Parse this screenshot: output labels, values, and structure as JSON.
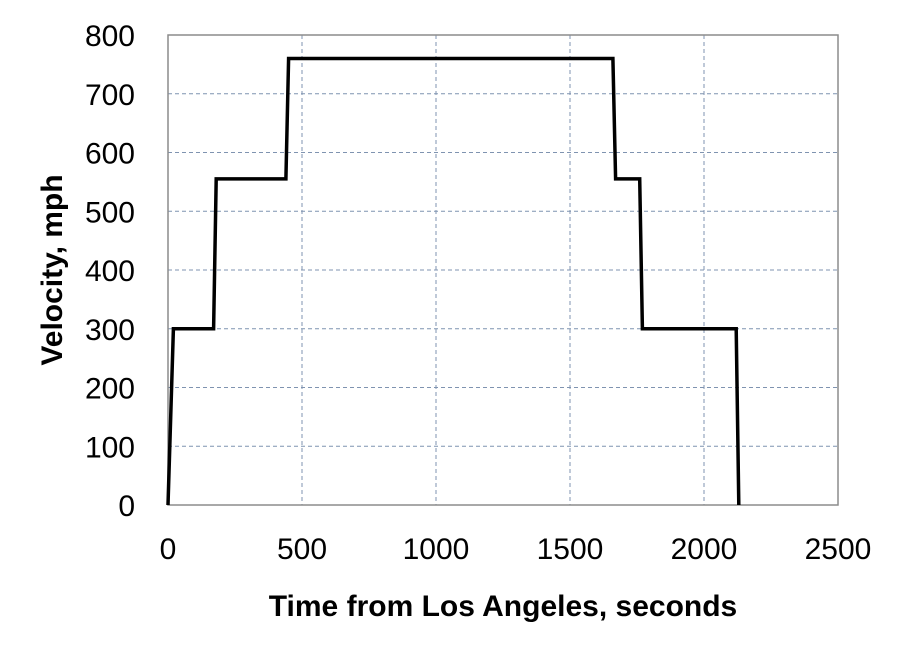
{
  "chart_data": {
    "type": "line",
    "title": "",
    "xlabel": "Time from Los Angeles, seconds",
    "ylabel": "Velocity, mph",
    "xlim": [
      0,
      2500
    ],
    "ylim": [
      0,
      800
    ],
    "x_ticks": [
      0,
      500,
      1000,
      1500,
      2000,
      2500
    ],
    "y_ticks": [
      0,
      100,
      200,
      300,
      400,
      500,
      600,
      700,
      800
    ],
    "x_tick_labels": [
      "0",
      "500",
      "1000",
      "1500",
      "2000",
      "2500"
    ],
    "y_tick_labels": [
      "0",
      "100",
      "200",
      "300",
      "400",
      "500",
      "600",
      "700",
      "800"
    ],
    "grid": true,
    "legend": "none",
    "series": [
      {
        "color": "#000000",
        "x": [
          0,
          20,
          170,
          180,
          440,
          450,
          1660,
          1670,
          1760,
          1770,
          2120,
          2130
        ],
        "y": [
          0,
          300,
          300,
          555,
          555,
          760,
          760,
          555,
          555,
          300,
          300,
          0
        ]
      }
    ]
  }
}
